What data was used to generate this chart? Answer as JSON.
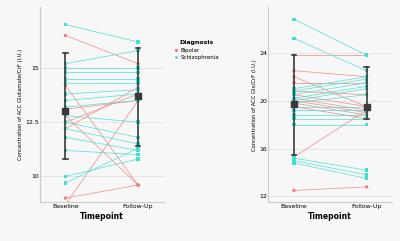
{
  "left_panel": {
    "ylabel": "Concentration of ACC Glutamate/CrF (I.U.)",
    "xlabel": "Timepoint",
    "xticks": [
      "Baseline",
      "Follow-Up"
    ],
    "ylim": [
      8.8,
      17.8
    ],
    "yticks": [
      10.0,
      12.5,
      15.0
    ],
    "mean_baseline": 13.0,
    "mean_followup": 13.7,
    "ci_baseline": [
      10.8,
      15.7
    ],
    "ci_followup": [
      11.4,
      15.9
    ],
    "bipolar": {
      "baseline": [
        16.5,
        14.2,
        13.1,
        12.8,
        12.5,
        12.2,
        9.0,
        8.7
      ],
      "followup": [
        15.2,
        9.6,
        13.5,
        9.6,
        13.8,
        14.1,
        9.6,
        13.5
      ]
    },
    "schizophrenia": {
      "baseline": [
        17.0,
        15.2,
        15.0,
        14.8,
        14.5,
        14.3,
        13.8,
        13.5,
        13.2,
        12.8,
        12.5,
        12.2,
        11.8,
        11.2,
        10.0,
        9.7
      ],
      "followup": [
        16.2,
        15.8,
        15.0,
        14.8,
        14.5,
        14.3,
        14.0,
        13.8,
        13.5,
        12.5,
        11.8,
        11.5,
        11.2,
        11.0,
        10.8,
        11.3
      ]
    }
  },
  "right_panel": {
    "ylabel": "Concentration of ACC Glx/CrF (I.U.)",
    "xlabel": "Timepoint",
    "xticks": [
      "Baseline",
      "Follow-Up"
    ],
    "ylim": [
      11.5,
      27.8
    ],
    "yticks": [
      12,
      16,
      20,
      24
    ],
    "mean_baseline": 19.7,
    "mean_followup": 19.5,
    "ci_baseline": [
      15.5,
      23.8
    ],
    "ci_followup": [
      18.5,
      22.8
    ],
    "bipolar": {
      "baseline": [
        23.8,
        22.5,
        22.0,
        21.5,
        20.8,
        20.5,
        20.2,
        20.0,
        19.8,
        19.5,
        15.3,
        12.5
      ],
      "followup": [
        23.8,
        22.0,
        19.5,
        21.5,
        20.5,
        19.5,
        19.2,
        19.0,
        18.8,
        18.5,
        19.2,
        12.8
      ]
    },
    "schizophrenia": {
      "baseline": [
        26.8,
        25.2,
        21.0,
        20.8,
        20.5,
        20.2,
        20.0,
        19.8,
        19.5,
        19.2,
        18.8,
        18.5,
        18.0,
        15.2,
        15.0,
        14.8
      ],
      "followup": [
        23.8,
        22.5,
        22.0,
        21.8,
        21.5,
        21.2,
        21.0,
        20.5,
        19.5,
        19.2,
        18.8,
        18.5,
        18.0,
        14.2,
        13.8,
        13.5
      ]
    }
  },
  "colors": {
    "bipolar": "#F08080",
    "schizophrenia": "#40E0D0"
  },
  "fig_bg": "#f7f7f7"
}
